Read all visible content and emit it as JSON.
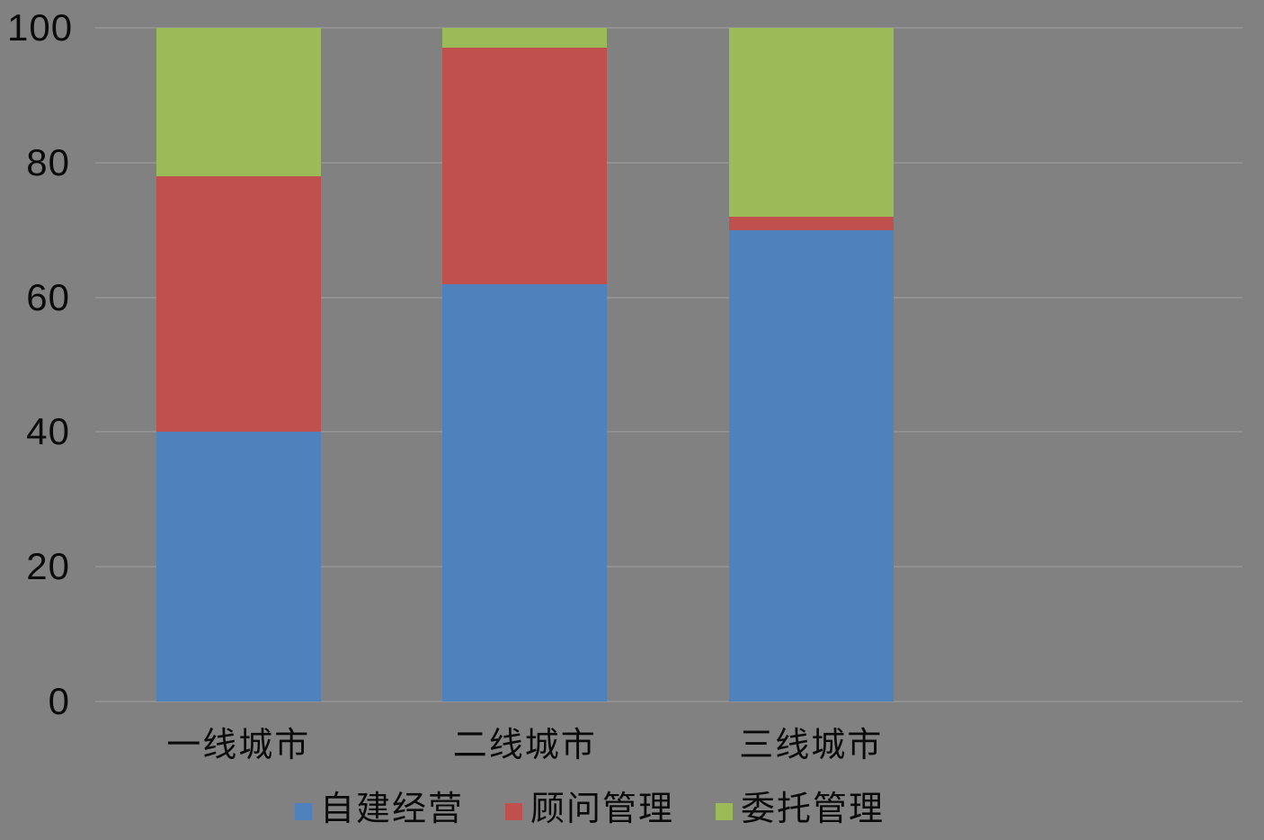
{
  "chart_data": {
    "type": "bar",
    "stacked": true,
    "orientation": "vertical",
    "title": "",
    "xlabel": "",
    "ylabel": "",
    "categories": [
      "一线城市",
      "二线城市",
      "三线城市"
    ],
    "series": [
      {
        "name": "自建经营",
        "color": "#4F81BD",
        "values": [
          40,
          62,
          70
        ]
      },
      {
        "name": "顾问管理",
        "color": "#C0504D",
        "values": [
          38,
          35,
          2
        ]
      },
      {
        "name": "委托管理",
        "color": "#9BBB59",
        "values": [
          22,
          3,
          28
        ]
      }
    ],
    "stack_totals": [
      100,
      100,
      100
    ],
    "ylim": [
      0,
      100
    ],
    "yticks": [
      0,
      20,
      40,
      60,
      80,
      100
    ],
    "ytick_labels": [
      "0",
      "20",
      "40",
      "60",
      "80",
      "100"
    ],
    "grid": true,
    "legend_position": "bottom",
    "colors": {
      "background": "#818181",
      "gridline": "rgba(255,255,255,0.13)",
      "text": "#0a0a0a"
    }
  }
}
